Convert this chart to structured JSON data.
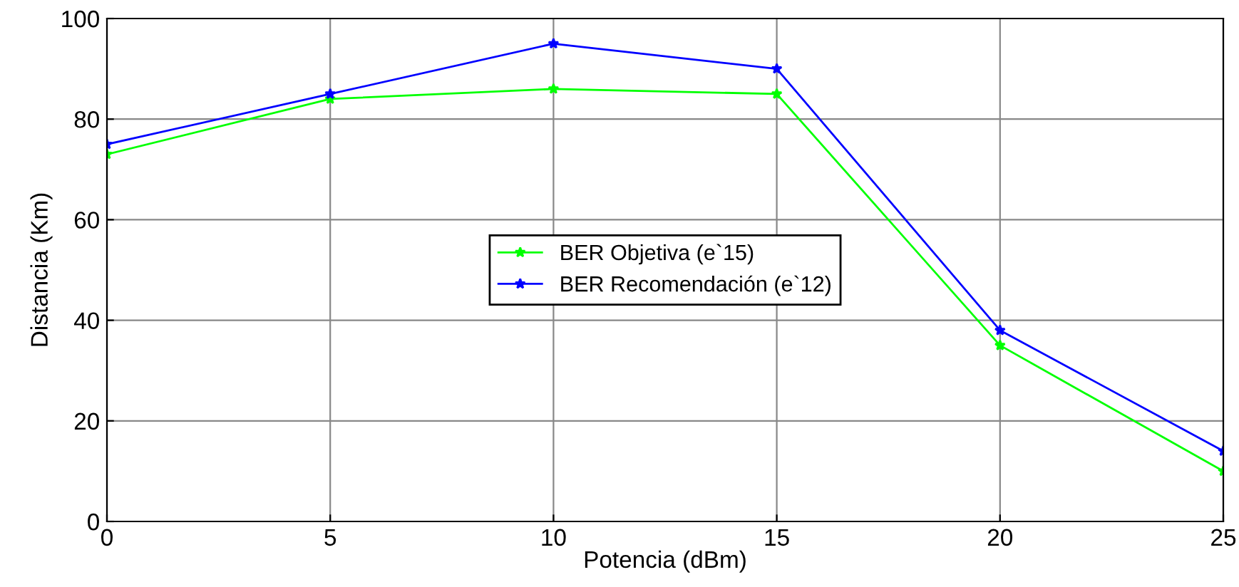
{
  "chart_data": {
    "type": "line",
    "xlabel": "Potencia (dBm)",
    "ylabel": "Distancia (Km)",
    "x": [
      0,
      5,
      10,
      15,
      20,
      25
    ],
    "series": [
      {
        "name": "BER Objetiva (e`15)",
        "color": "#00ff00",
        "values": [
          73,
          84,
          86,
          85,
          35,
          10
        ]
      },
      {
        "name": "BER Recomendación (e`12)",
        "color": "#0000ff",
        "values": [
          75,
          85,
          95,
          90,
          38,
          14
        ]
      }
    ],
    "xlim": [
      0,
      25
    ],
    "ylim": [
      0,
      100
    ],
    "xticks": [
      0,
      5,
      10,
      15,
      20,
      25
    ],
    "yticks": [
      0,
      20,
      40,
      60,
      80,
      100
    ],
    "grid": true,
    "legend": "center",
    "marker": "star",
    "line_style": "solid"
  }
}
